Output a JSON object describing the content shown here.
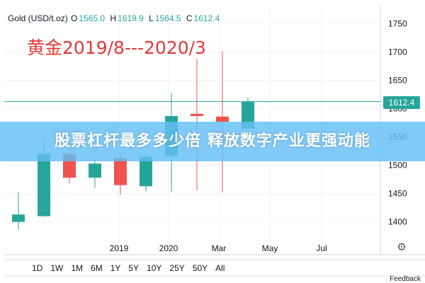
{
  "ohlc": {
    "symbol": "Gold (USD/t.oz)",
    "open_label": "O",
    "open": "1565.0",
    "high_label": "H",
    "high": "1619.9",
    "low_label": "L",
    "low": "1564.5",
    "close_label": "C",
    "close": "1612.4"
  },
  "overlay_title": "黄金2019/8---2020/3",
  "banner_text": "股票杠杆最多多少倍 释放数字产业更强动能",
  "price_tag": "1612.4",
  "range_buttons": [
    "1D",
    "1W",
    "1M",
    "6M",
    "1Y",
    "5Y",
    "10Y",
    "25Y",
    "50Y",
    "All"
  ],
  "feedback": "Feedback",
  "colors": {
    "up": "#26a69a",
    "down": "#ef5350",
    "price_line": "#26a69a",
    "overlay": "#e53935"
  },
  "chart_data": {
    "type": "candlestick",
    "title": "",
    "y_ticks": [
      1400,
      1450,
      1500,
      1550,
      1600,
      1650,
      1700,
      1750
    ],
    "ylim": [
      1342,
      1782
    ],
    "x_tick_labels": [
      "2019",
      "2020",
      "Mar",
      "May",
      "Jul"
    ],
    "price_line": 1612.4,
    "candles": [
      {
        "open": 1400,
        "high": 1452,
        "low": 1387,
        "close": 1413
      },
      {
        "open": 1410,
        "high": 1548,
        "low": 1409,
        "close": 1520
      },
      {
        "open": 1520,
        "high": 1526,
        "low": 1468,
        "close": 1478
      },
      {
        "open": 1478,
        "high": 1512,
        "low": 1460,
        "close": 1503
      },
      {
        "open": 1512,
        "high": 1520,
        "low": 1448,
        "close": 1465
      },
      {
        "open": 1463,
        "high": 1524,
        "low": 1454,
        "close": 1515
      },
      {
        "open": 1517,
        "high": 1628,
        "low": 1453,
        "close": 1587
      },
      {
        "open": 1591,
        "high": 1688,
        "low": 1456,
        "close": 1587
      },
      {
        "open": 1586,
        "high": 1702,
        "low": 1452,
        "close": 1577
      },
      {
        "open": 1565,
        "high": 1619.9,
        "low": 1564.5,
        "close": 1612.4
      }
    ]
  }
}
